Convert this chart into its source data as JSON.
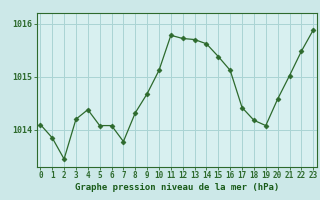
{
  "x": [
    0,
    1,
    2,
    3,
    4,
    5,
    6,
    7,
    8,
    9,
    10,
    11,
    12,
    13,
    14,
    15,
    16,
    17,
    18,
    19,
    20,
    21,
    22,
    23
  ],
  "y": [
    1014.1,
    1013.85,
    1013.45,
    1014.2,
    1014.38,
    1014.08,
    1014.08,
    1013.78,
    1014.32,
    1014.68,
    1015.12,
    1015.78,
    1015.72,
    1015.7,
    1015.62,
    1015.38,
    1015.12,
    1014.42,
    1014.18,
    1014.08,
    1014.58,
    1015.02,
    1015.48,
    1015.88
  ],
  "line_color": "#2d6a2d",
  "marker": "D",
  "marker_size": 2.5,
  "bg_color": "#cce8e8",
  "plot_bg_color": "#d8f0f0",
  "grid_color": "#aad4d4",
  "yticks": [
    1014,
    1015,
    1016
  ],
  "ylim": [
    1013.3,
    1016.2
  ],
  "xlim": [
    -0.3,
    23.3
  ],
  "xlabel": "Graphe pression niveau de la mer (hPa)",
  "xlabel_color": "#1a5c1a",
  "tick_color": "#2d6a2d",
  "axis_color": "#2d6a2d",
  "tick_fontsize": 5.5,
  "ylabel_fontsize": 6.0,
  "xlabel_fontsize": 6.5
}
